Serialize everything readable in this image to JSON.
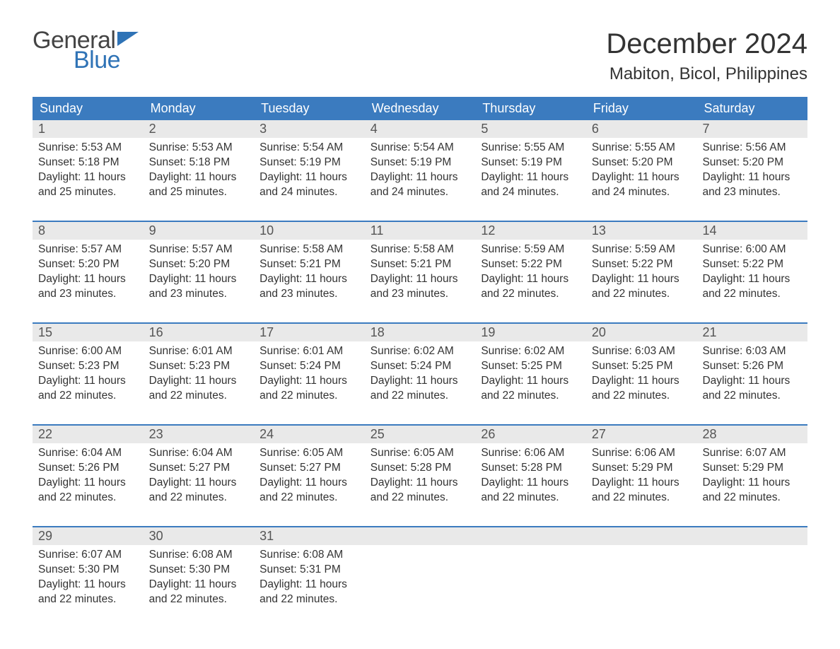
{
  "logo": {
    "text1": "General",
    "text2": "Blue",
    "flag_color": "#2f73b6"
  },
  "title": "December 2024",
  "location": "Mabiton, Bicol, Philippines",
  "colors": {
    "header_bg": "#3b7bbf",
    "header_text": "#ffffff",
    "daynum_bg": "#e9e9e9",
    "text": "#333333",
    "week_border": "#3b7bbf"
  },
  "day_headers": [
    "Sunday",
    "Monday",
    "Tuesday",
    "Wednesday",
    "Thursday",
    "Friday",
    "Saturday"
  ],
  "weeks": [
    [
      {
        "num": "1",
        "sunrise": "Sunrise: 5:53 AM",
        "sunset": "Sunset: 5:18 PM",
        "day1": "Daylight: 11 hours",
        "day2": "and 25 minutes."
      },
      {
        "num": "2",
        "sunrise": "Sunrise: 5:53 AM",
        "sunset": "Sunset: 5:18 PM",
        "day1": "Daylight: 11 hours",
        "day2": "and 25 minutes."
      },
      {
        "num": "3",
        "sunrise": "Sunrise: 5:54 AM",
        "sunset": "Sunset: 5:19 PM",
        "day1": "Daylight: 11 hours",
        "day2": "and 24 minutes."
      },
      {
        "num": "4",
        "sunrise": "Sunrise: 5:54 AM",
        "sunset": "Sunset: 5:19 PM",
        "day1": "Daylight: 11 hours",
        "day2": "and 24 minutes."
      },
      {
        "num": "5",
        "sunrise": "Sunrise: 5:55 AM",
        "sunset": "Sunset: 5:19 PM",
        "day1": "Daylight: 11 hours",
        "day2": "and 24 minutes."
      },
      {
        "num": "6",
        "sunrise": "Sunrise: 5:55 AM",
        "sunset": "Sunset: 5:20 PM",
        "day1": "Daylight: 11 hours",
        "day2": "and 24 minutes."
      },
      {
        "num": "7",
        "sunrise": "Sunrise: 5:56 AM",
        "sunset": "Sunset: 5:20 PM",
        "day1": "Daylight: 11 hours",
        "day2": "and 23 minutes."
      }
    ],
    [
      {
        "num": "8",
        "sunrise": "Sunrise: 5:57 AM",
        "sunset": "Sunset: 5:20 PM",
        "day1": "Daylight: 11 hours",
        "day2": "and 23 minutes."
      },
      {
        "num": "9",
        "sunrise": "Sunrise: 5:57 AM",
        "sunset": "Sunset: 5:20 PM",
        "day1": "Daylight: 11 hours",
        "day2": "and 23 minutes."
      },
      {
        "num": "10",
        "sunrise": "Sunrise: 5:58 AM",
        "sunset": "Sunset: 5:21 PM",
        "day1": "Daylight: 11 hours",
        "day2": "and 23 minutes."
      },
      {
        "num": "11",
        "sunrise": "Sunrise: 5:58 AM",
        "sunset": "Sunset: 5:21 PM",
        "day1": "Daylight: 11 hours",
        "day2": "and 23 minutes."
      },
      {
        "num": "12",
        "sunrise": "Sunrise: 5:59 AM",
        "sunset": "Sunset: 5:22 PM",
        "day1": "Daylight: 11 hours",
        "day2": "and 22 minutes."
      },
      {
        "num": "13",
        "sunrise": "Sunrise: 5:59 AM",
        "sunset": "Sunset: 5:22 PM",
        "day1": "Daylight: 11 hours",
        "day2": "and 22 minutes."
      },
      {
        "num": "14",
        "sunrise": "Sunrise: 6:00 AM",
        "sunset": "Sunset: 5:22 PM",
        "day1": "Daylight: 11 hours",
        "day2": "and 22 minutes."
      }
    ],
    [
      {
        "num": "15",
        "sunrise": "Sunrise: 6:00 AM",
        "sunset": "Sunset: 5:23 PM",
        "day1": "Daylight: 11 hours",
        "day2": "and 22 minutes."
      },
      {
        "num": "16",
        "sunrise": "Sunrise: 6:01 AM",
        "sunset": "Sunset: 5:23 PM",
        "day1": "Daylight: 11 hours",
        "day2": "and 22 minutes."
      },
      {
        "num": "17",
        "sunrise": "Sunrise: 6:01 AM",
        "sunset": "Sunset: 5:24 PM",
        "day1": "Daylight: 11 hours",
        "day2": "and 22 minutes."
      },
      {
        "num": "18",
        "sunrise": "Sunrise: 6:02 AM",
        "sunset": "Sunset: 5:24 PM",
        "day1": "Daylight: 11 hours",
        "day2": "and 22 minutes."
      },
      {
        "num": "19",
        "sunrise": "Sunrise: 6:02 AM",
        "sunset": "Sunset: 5:25 PM",
        "day1": "Daylight: 11 hours",
        "day2": "and 22 minutes."
      },
      {
        "num": "20",
        "sunrise": "Sunrise: 6:03 AM",
        "sunset": "Sunset: 5:25 PM",
        "day1": "Daylight: 11 hours",
        "day2": "and 22 minutes."
      },
      {
        "num": "21",
        "sunrise": "Sunrise: 6:03 AM",
        "sunset": "Sunset: 5:26 PM",
        "day1": "Daylight: 11 hours",
        "day2": "and 22 minutes."
      }
    ],
    [
      {
        "num": "22",
        "sunrise": "Sunrise: 6:04 AM",
        "sunset": "Sunset: 5:26 PM",
        "day1": "Daylight: 11 hours",
        "day2": "and 22 minutes."
      },
      {
        "num": "23",
        "sunrise": "Sunrise: 6:04 AM",
        "sunset": "Sunset: 5:27 PM",
        "day1": "Daylight: 11 hours",
        "day2": "and 22 minutes."
      },
      {
        "num": "24",
        "sunrise": "Sunrise: 6:05 AM",
        "sunset": "Sunset: 5:27 PM",
        "day1": "Daylight: 11 hours",
        "day2": "and 22 minutes."
      },
      {
        "num": "25",
        "sunrise": "Sunrise: 6:05 AM",
        "sunset": "Sunset: 5:28 PM",
        "day1": "Daylight: 11 hours",
        "day2": "and 22 minutes."
      },
      {
        "num": "26",
        "sunrise": "Sunrise: 6:06 AM",
        "sunset": "Sunset: 5:28 PM",
        "day1": "Daylight: 11 hours",
        "day2": "and 22 minutes."
      },
      {
        "num": "27",
        "sunrise": "Sunrise: 6:06 AM",
        "sunset": "Sunset: 5:29 PM",
        "day1": "Daylight: 11 hours",
        "day2": "and 22 minutes."
      },
      {
        "num": "28",
        "sunrise": "Sunrise: 6:07 AM",
        "sunset": "Sunset: 5:29 PM",
        "day1": "Daylight: 11 hours",
        "day2": "and 22 minutes."
      }
    ],
    [
      {
        "num": "29",
        "sunrise": "Sunrise: 6:07 AM",
        "sunset": "Sunset: 5:30 PM",
        "day1": "Daylight: 11 hours",
        "day2": "and 22 minutes."
      },
      {
        "num": "30",
        "sunrise": "Sunrise: 6:08 AM",
        "sunset": "Sunset: 5:30 PM",
        "day1": "Daylight: 11 hours",
        "day2": "and 22 minutes."
      },
      {
        "num": "31",
        "sunrise": "Sunrise: 6:08 AM",
        "sunset": "Sunset: 5:31 PM",
        "day1": "Daylight: 11 hours",
        "day2": "and 22 minutes."
      },
      {
        "empty": true
      },
      {
        "empty": true
      },
      {
        "empty": true
      },
      {
        "empty": true
      }
    ]
  ]
}
